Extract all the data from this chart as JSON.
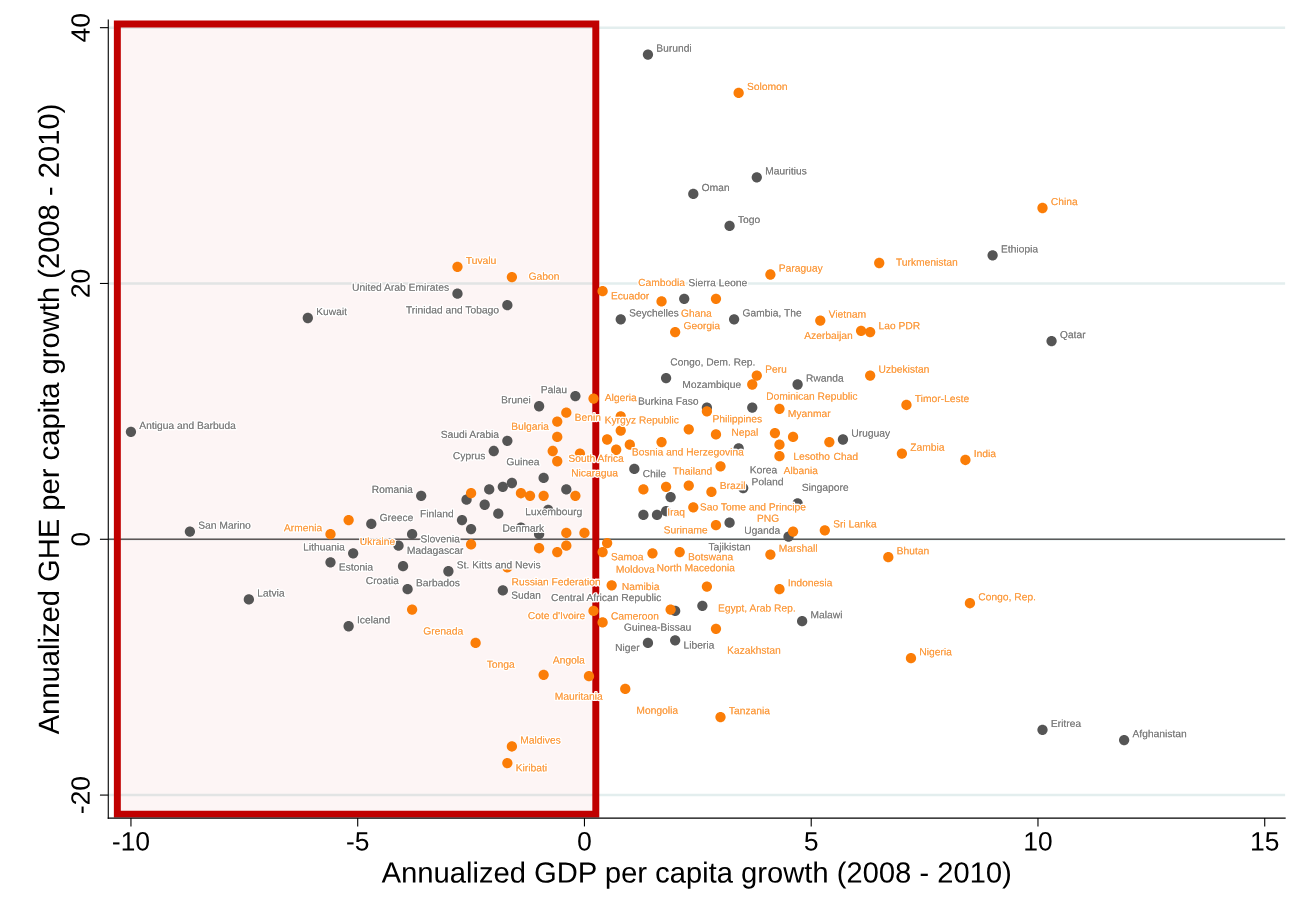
{
  "chart_data": {
    "type": "scatter",
    "xlabel": "Annualized GDP per capita growth (2008 - 2010)",
    "ylabel": "Annualized GHE per capita growth (2008 - 2010)",
    "xlim": [
      -10.5,
      15.45
    ],
    "ylim": [
      -21.8,
      40.6
    ],
    "xticks": [
      -10,
      -5,
      0,
      5,
      10,
      15
    ],
    "yticks": [
      -20,
      0,
      20,
      40
    ],
    "grid": "y",
    "marker": "circle",
    "ref_lines": [
      {
        "axis": "y",
        "value": 0,
        "color": "#5a5a5a"
      }
    ],
    "bands": [
      {
        "axis": "x",
        "from": -10.3,
        "to": 0.25,
        "color": "#c00000"
      }
    ],
    "series": [
      {
        "color": "#555555",
        "x": [
          1.4,
          3.8,
          2.4,
          3.2,
          9.0,
          -2.8,
          -1.7,
          -6.1,
          2.2,
          0.8,
          3.3,
          10.3,
          1.8,
          4.7,
          -10.0,
          -8.7,
          -7.4,
          -5.6,
          -5.1,
          -4.7,
          -3.8,
          -4.1,
          -4.0,
          -3.9,
          -5.2,
          -1.8,
          -3.0,
          -3.6,
          -2.0,
          -1.7,
          -1.0,
          -0.2,
          1.1,
          4.7,
          3.2,
          4.5,
          4.8,
          2.6,
          1.4,
          2.0,
          2.0,
          10.1,
          11.9,
          3.4,
          3.5,
          5.7,
          -2.7,
          -1.4,
          -1.9,
          -2.5,
          1.9,
          1.3,
          1.6,
          1.8,
          -0.9,
          -1.6,
          -2.2,
          -0.8,
          2.7,
          3.7,
          -1.8,
          -2.6,
          -0.4,
          -1.0,
          -2.1
        ],
        "values": [
          37.9,
          28.3,
          27.0,
          24.5,
          22.2,
          19.2,
          18.3,
          17.3,
          18.8,
          17.2,
          17.2,
          15.5,
          12.6,
          12.1,
          8.4,
          0.6,
          -4.7,
          -1.8,
          -1.1,
          1.2,
          0.4,
          -0.5,
          -2.1,
          -3.9,
          -6.8,
          -4.0,
          -2.5,
          3.4,
          6.9,
          7.7,
          10.4,
          11.2,
          5.5,
          2.8,
          1.3,
          0.2,
          -6.4,
          -5.2,
          -8.1,
          -7.9,
          -5.6,
          -14.9,
          -15.7,
          7.1,
          4.0,
          7.8,
          1.5,
          0.9,
          2.0,
          0.8,
          3.3,
          1.9,
          1.9,
          2.2,
          4.8,
          4.4,
          2.7,
          2.3,
          10.3,
          10.3,
          4.1,
          3.1,
          3.9,
          0.4,
          3.9
        ],
        "value_labels": [
          "Burundi",
          "Mauritius",
          "Oman",
          "Togo",
          "Ethiopia",
          "United Arab Emirates",
          "Trinidad and Tobago",
          "Kuwait",
          "Sierra Leone",
          "Seychelles",
          "Gambia, The",
          "Qatar",
          "Congo, Dem. Rep.",
          "Rwanda",
          "Antigua and Barbuda",
          "San Marino",
          "Latvia",
          "Estonia",
          "Lithuania",
          "Greece",
          "Slovenia",
          "Madagascar",
          "Croatia",
          "Barbados",
          "Iceland",
          "Sudan",
          "St. Kitts and Nevis",
          "Romania",
          "Cyprus",
          "Saudi Arabia",
          "Brunei",
          "Palau",
          "Chile",
          "Singapore",
          "Tajikistan",
          "Uganda",
          "Malawi",
          "Guinea-Bissau",
          "Niger",
          "Liberia",
          "Central African Republic",
          "Eritrea",
          "Afghanistan",
          "Korea",
          "Poland",
          "Uruguay",
          "Finland",
          "Luxembourg",
          "Denmark",
          null,
          null,
          null,
          null,
          null,
          "Guinea",
          null,
          null,
          null,
          "Burkina Faso",
          "Mozambique",
          null,
          null,
          null,
          null,
          null
        ]
      },
      {
        "color": "#fb7d07",
        "x": [
          3.4,
          10.1,
          6.5,
          4.1,
          -2.8,
          -1.6,
          0.4,
          1.7,
          2.9,
          5.2,
          6.1,
          6.3,
          2.0,
          3.8,
          3.7,
          6.3,
          7.1,
          7.0,
          8.4,
          6.7,
          8.5,
          7.2,
          3.0,
          0.9,
          0.1,
          -0.9,
          -2.4,
          -3.8,
          -1.6,
          -1.7,
          0.4,
          0.2,
          1.9,
          2.9,
          2.7,
          4.3,
          0.6,
          4.1,
          1.5,
          2.1,
          0.4,
          -1.7,
          -5.6,
          -5.2,
          -2.5,
          -0.6,
          -0.4,
          0.5,
          0.2,
          -0.4,
          -0.6,
          0.8,
          0.8,
          2.3,
          2.7,
          4.3,
          -0.6,
          1.0,
          0.7,
          -0.6,
          1.7,
          4.2,
          4.3,
          4.3,
          3.0,
          2.4,
          2.9,
          4.6,
          5.3,
          2.3,
          2.8,
          5.4,
          -2.5,
          -1.4,
          -1.2,
          -0.9,
          -0.2,
          1.3,
          1.8,
          -0.4,
          0.0,
          -1.0,
          2.9,
          -0.7,
          -0.1,
          0.5,
          4.6
        ],
        "values": [
          34.9,
          25.9,
          21.6,
          20.7,
          21.3,
          20.5,
          19.4,
          18.6,
          18.8,
          17.1,
          16.3,
          16.2,
          16.2,
          12.8,
          12.1,
          12.8,
          10.5,
          6.7,
          6.2,
          -1.4,
          -5.0,
          -9.3,
          -13.9,
          -11.7,
          -10.7,
          -10.6,
          -8.1,
          -5.5,
          -16.2,
          -17.5,
          -6.5,
          -5.6,
          -5.5,
          -7.0,
          -3.7,
          -3.9,
          -3.6,
          -1.2,
          -1.1,
          -1.0,
          -1.0,
          -2.2,
          0.4,
          1.5,
          -0.4,
          -1.0,
          -0.5,
          -0.3,
          11.0,
          9.9,
          9.2,
          9.6,
          8.5,
          8.6,
          10.0,
          10.2,
          8.0,
          7.4,
          7.0,
          6.1,
          7.6,
          8.3,
          7.4,
          6.5,
          5.7,
          2.5,
          1.1,
          0.6,
          0.7,
          4.2,
          3.7,
          7.6,
          3.6,
          3.6,
          3.4,
          3.4,
          3.4,
          3.9,
          4.1,
          0.5,
          0.5,
          -0.7,
          8.2,
          6.9,
          6.7,
          7.8,
          8.0
        ],
        "value_labels": [
          "Solomon",
          "China",
          "Turkmenistan",
          "Paraguay",
          "Tuvalu",
          "Gabon",
          "Ecuador",
          "Cambodia",
          "Ghana",
          "Vietnam",
          "Azerbaijan",
          "Lao PDR",
          "Georgia",
          "Peru",
          "Dominican Republic",
          "Uzbekistan",
          "Timor-Leste",
          "Zambia",
          "India",
          "Bhutan",
          "Congo, Rep.",
          "Nigeria",
          "Tanzania",
          "Mongolia",
          "Angola",
          "Mauritania",
          "Tonga",
          "Grenada",
          "Maldives",
          "Kiribati",
          "Cameroon",
          "Cote d'Ivoire",
          "Namibia",
          "Kazakhstan",
          "Egypt, Arab Rep.",
          "Indonesia",
          "Moldova",
          "Marshall",
          "North Macedonia",
          "Botswana",
          "Samoa",
          "Russian Federation",
          "Armenia",
          "Ukraine",
          null,
          null,
          null,
          null,
          "Kyrgyz Republic",
          "Benin",
          "Bulgaria",
          "Algeria",
          "Bosnia and Herzegovina",
          null,
          "Philippines",
          "Myanmar",
          "South Africa",
          null,
          null,
          "Nicaragua",
          null,
          "Nepal",
          "Lesotho",
          "Albania",
          "Thailand",
          "Iraq",
          "Suriname",
          "PNG",
          "Sri Lanka",
          "Sao Tome and Principe",
          "Brazil",
          "Chad",
          null,
          null,
          null,
          null,
          null,
          null,
          null,
          null,
          null,
          null,
          null,
          null,
          null,
          null,
          null
        ]
      }
    ]
  }
}
